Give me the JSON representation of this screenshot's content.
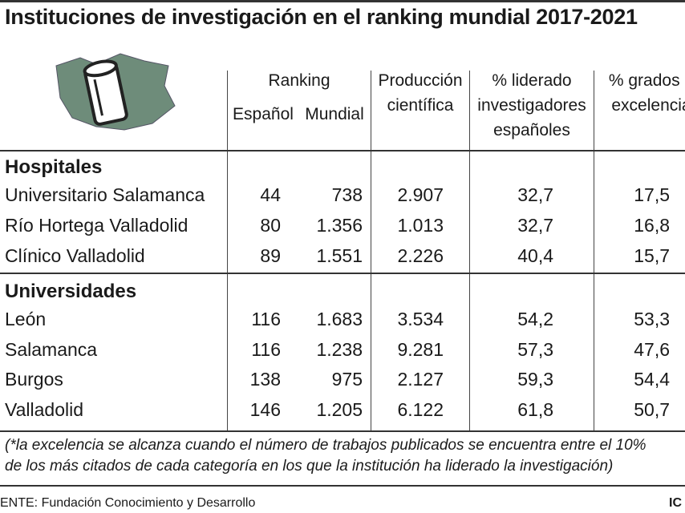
{
  "title": "Instituciones de investigación en el ranking mundial 2017-2021",
  "header": {
    "ranking": "Ranking",
    "espanol": "Español",
    "mundial": "Mundial",
    "produccion": [
      "Producción",
      "científica"
    ],
    "liderado": [
      "% liderado",
      "investigadores",
      "españoles"
    ],
    "grados": [
      "% grados d",
      "excelencia"
    ]
  },
  "groups": [
    {
      "name": "Hospitales",
      "rows": [
        [
          "Universitario Salamanca",
          "44",
          "738",
          "2.907",
          "32,7",
          "17,5"
        ],
        [
          "Río Hortega Valladolid",
          "80",
          "1.356",
          "1.013",
          "32,7",
          "16,8"
        ],
        [
          "Clínico Valladolid",
          "89",
          "1.551",
          "2.226",
          "40,4",
          "15,7"
        ]
      ]
    },
    {
      "name": "Universidades",
      "rows": [
        [
          "León",
          "116",
          "1.683",
          "3.534",
          "54,2",
          "53,3"
        ],
        [
          "Salamanca",
          "116",
          "1.238",
          "9.281",
          "57,3",
          "47,6"
        ],
        [
          "Burgos",
          "138",
          "975",
          "2.127",
          "59,3",
          "54,4"
        ],
        [
          "Valladolid",
          "146",
          "1.205",
          "6.122",
          "61,8",
          "50,7"
        ]
      ]
    }
  ],
  "footnote": [
    "(*la excelencia se alcanza cuando el número de trabajos publicados se encuentra entre el 10%",
    "de los más citados de cada categoría en los que la institución ha liderado la investigación)"
  ],
  "source": "ENTE: Fundación Conocimiento y Desarrollo",
  "credit": "IC"
}
